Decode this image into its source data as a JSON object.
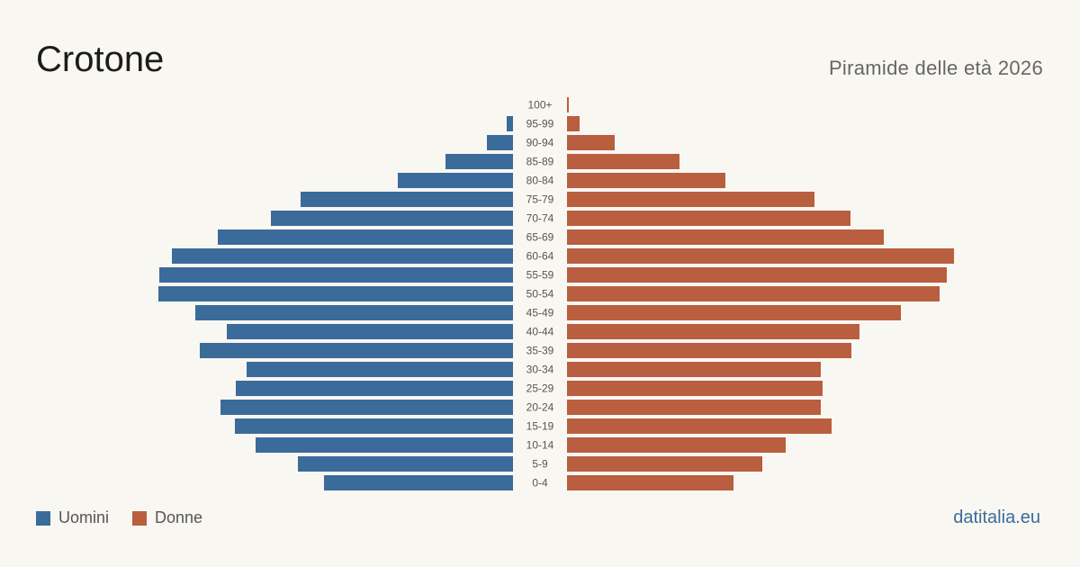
{
  "title": "Crotone",
  "subtitle": "Piramide delle età 2026",
  "brand": "datitalia.eu",
  "colors": {
    "men": "#3b6b9a",
    "women": "#b95e3e"
  },
  "chart_data": {
    "type": "bar",
    "orientation": "horizontal-pyramid",
    "categories": [
      "100+",
      "95-99",
      "90-94",
      "85-89",
      "80-84",
      "75-79",
      "70-74",
      "65-69",
      "60-64",
      "55-59",
      "50-54",
      "45-49",
      "40-44",
      "35-39",
      "30-34",
      "25-29",
      "20-24",
      "15-19",
      "10-14",
      "5-9",
      "0-4"
    ],
    "series": [
      {
        "name": "Uomini",
        "values": [
          0,
          7,
          29,
          75,
          128,
          236,
          269,
          328,
          379,
          393,
          394,
          353,
          318,
          348,
          296,
          308,
          325,
          309,
          286,
          239,
          210
        ]
      },
      {
        "name": "Donne",
        "values": [
          2,
          14,
          53,
          125,
          176,
          275,
          315,
          352,
          430,
          422,
          414,
          371,
          325,
          316,
          282,
          284,
          282,
          294,
          243,
          217,
          185
        ]
      }
    ],
    "legend": "bottom-left"
  }
}
